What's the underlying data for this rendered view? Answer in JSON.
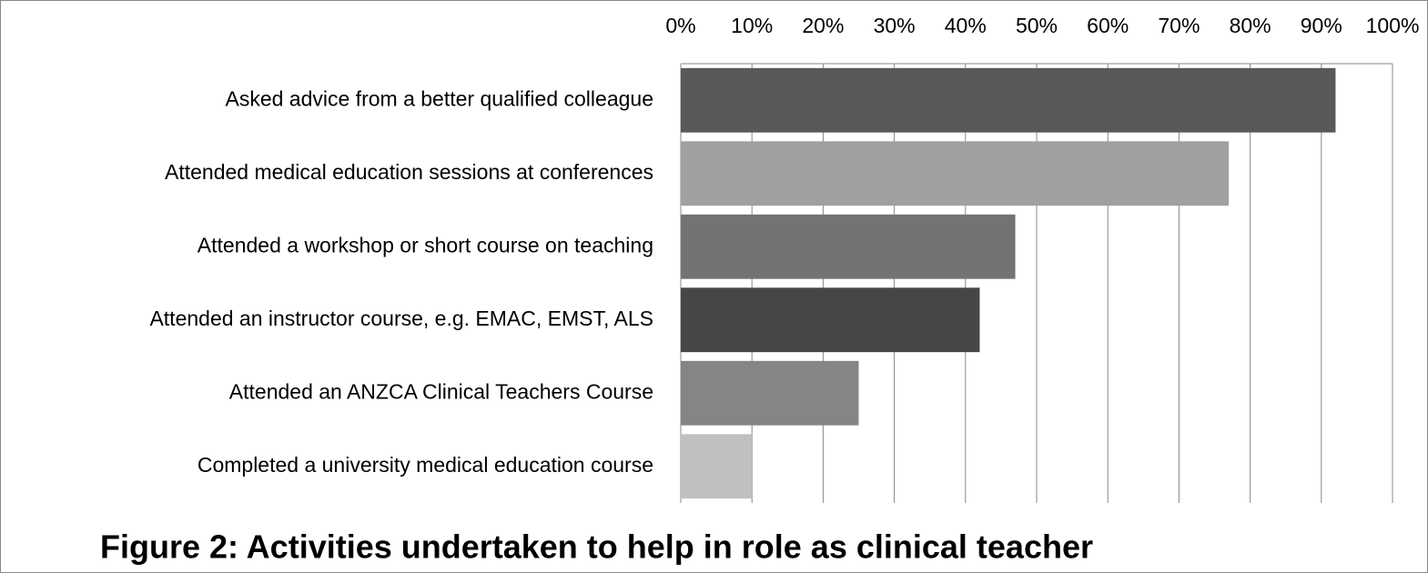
{
  "chart_data": {
    "type": "hbar",
    "title": "Figure 2: Activities undertaken to help in role as clinical teacher",
    "categories": [
      "Asked advice from a better qualified colleague",
      "Attended medical education sessions at conferences",
      "Attended a workshop or short course on teaching",
      "Attended an instructor course, e.g. EMAC, EMST, ALS",
      "Attended an ANZCA Clinical Teachers Course",
      "Completed a university medical education course"
    ],
    "values": [
      92,
      77,
      47,
      42,
      25,
      10
    ],
    "colors": [
      "#595959",
      "#a0a0a0",
      "#737373",
      "#464646",
      "#858585",
      "#c0c0c0"
    ],
    "xlim": [
      0,
      100
    ],
    "xticks": [
      {
        "value": 0,
        "label": "0%"
      },
      {
        "value": 10,
        "label": "10%"
      },
      {
        "value": 20,
        "label": "20%"
      },
      {
        "value": 30,
        "label": "30%"
      },
      {
        "value": 40,
        "label": "40%"
      },
      {
        "value": 50,
        "label": "50%"
      },
      {
        "value": 60,
        "label": "60%"
      },
      {
        "value": 70,
        "label": "70%"
      },
      {
        "value": 80,
        "label": "80%"
      },
      {
        "value": 90,
        "label": "90%"
      },
      {
        "value": 100,
        "label": "100%"
      }
    ],
    "grid": true
  }
}
